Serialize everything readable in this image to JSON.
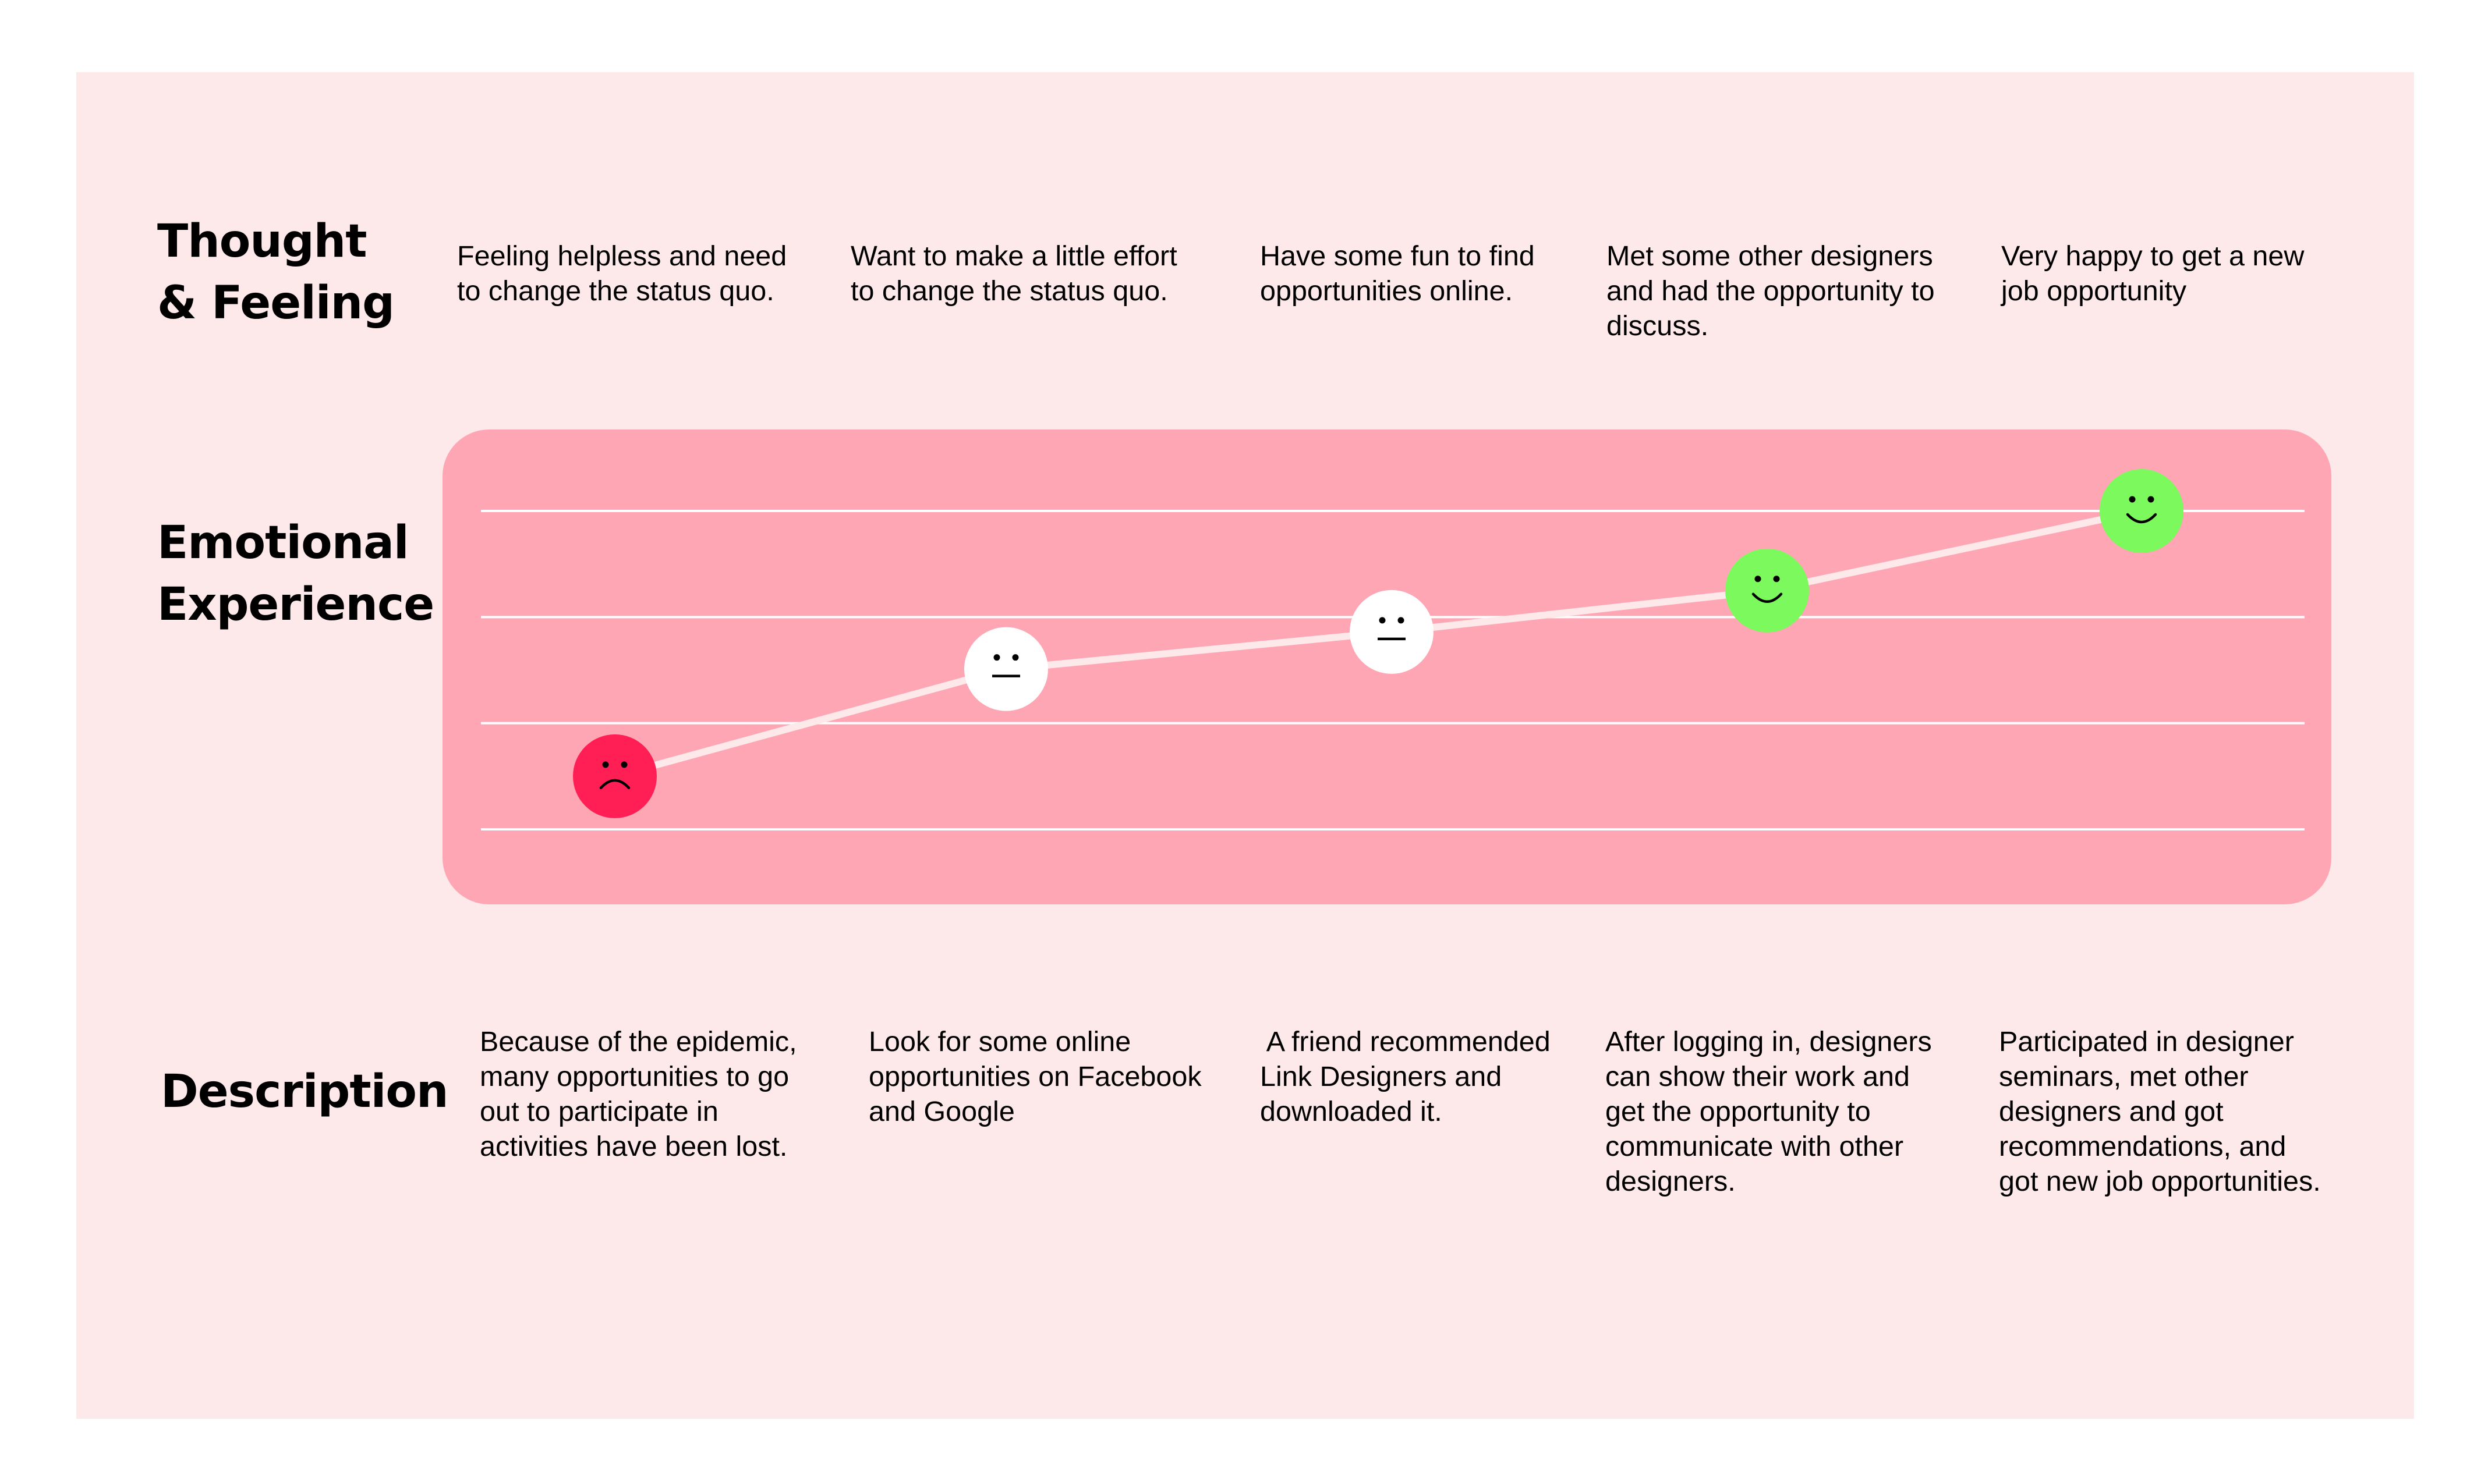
{
  "row_labels": {
    "thought": [
      "Thought",
      "& Feeling"
    ],
    "emotional": [
      "Emotional",
      "Experience"
    ],
    "description": "Description"
  },
  "thoughts": [
    "Feeling helpless and need\nto change the status quo.",
    "Want to make a little effort\nto change the status quo.",
    "Have some fun to find\nopportunities online.",
    "Met some other designers\nand had the opportunity to\ndiscuss.",
    "Very happy to get a new\njob opportunity"
  ],
  "descriptions": [
    "Because of the epidemic,\nmany opportunities to go\nout to participate in\nactivities have been lost.",
    "Look for some online\nopportunities on Facebook\nand Google",
    " A friend recommended\nLink Designers and\ndownloaded it.",
    "After logging in, designers\ncan show their work and\nget the opportunity to\ncommunicate with other\ndesigners.",
    "Participated in designer\nseminars, met other\ndesigners and got\nrecommendations, and\ngot new job opportunities."
  ],
  "chart_data": {
    "type": "line",
    "x": [
      1,
      2,
      3,
      4,
      5
    ],
    "values": [
      0.5,
      1.51,
      1.86,
      2.25,
      3.0
    ],
    "ylim": [
      0,
      3
    ],
    "grid": true,
    "points": [
      {
        "mood": "sad",
        "icon": "sad-face-icon",
        "color": "#ff1f55"
      },
      {
        "mood": "neutral",
        "icon": "neutral-face-icon",
        "color": "#ffffff"
      },
      {
        "mood": "neutral",
        "icon": "neutral-face-icon",
        "color": "#ffffff"
      },
      {
        "mood": "happy",
        "icon": "smiling-face-icon",
        "color": "#7cf95c"
      },
      {
        "mood": "happy",
        "icon": "smiling-face-icon",
        "color": "#7cf95c"
      }
    ]
  },
  "colors": {
    "background": "#fde8ea",
    "chart_background": "#ffa6b5",
    "gridline": "#ffffff",
    "line": "#fde8ea",
    "sad": "#ff1f55",
    "neutral": "#ffffff",
    "happy": "#7cf95c"
  }
}
